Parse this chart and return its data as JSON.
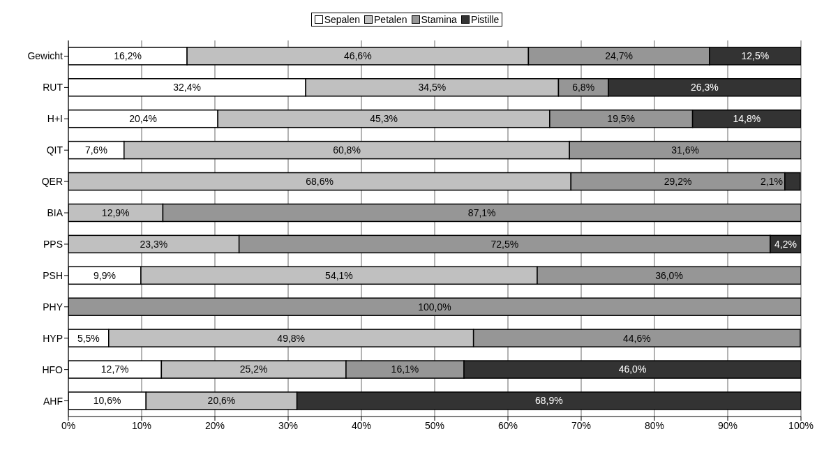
{
  "chart_data": {
    "type": "bar",
    "orientation": "horizontal",
    "stacked": true,
    "legend": "top",
    "grid": "x",
    "categories": [
      "Gewicht",
      "RUT",
      "H+I",
      "QIT",
      "QER",
      "BIA",
      "PPS",
      "PSH",
      "PHY",
      "HYP",
      "HFO",
      "AHF"
    ],
    "xlim": [
      0,
      100
    ],
    "xticks": [
      {
        "value": 0,
        "label": "0%"
      },
      {
        "value": 10,
        "label": "10%"
      },
      {
        "value": 20,
        "label": "20%"
      },
      {
        "value": 30,
        "label": "30%"
      },
      {
        "value": 40,
        "label": "40%"
      },
      {
        "value": 50,
        "label": "50%"
      },
      {
        "value": 60,
        "label": "60%"
      },
      {
        "value": 70,
        "label": "70%"
      },
      {
        "value": 80,
        "label": "80%"
      },
      {
        "value": 90,
        "label": "90%"
      },
      {
        "value": 100,
        "label": "100%"
      }
    ],
    "series": [
      {
        "name": "Sepalen",
        "color": "#ffffff",
        "values": [
          16.2,
          32.4,
          20.4,
          7.6,
          null,
          null,
          null,
          9.9,
          null,
          5.5,
          12.7,
          10.6
        ],
        "value_labels": [
          "16,2%",
          "32,4%",
          "20,4%",
          "7,6%",
          null,
          null,
          null,
          "9,9%",
          null,
          "5,5%",
          "12,7%",
          "10,6%"
        ]
      },
      {
        "name": "Petalen",
        "color": "#c0c0c0",
        "values": [
          46.6,
          34.5,
          45.3,
          60.8,
          68.6,
          12.9,
          23.3,
          54.1,
          null,
          49.8,
          25.2,
          20.6
        ],
        "value_labels": [
          "46,6%",
          "34,5%",
          "45,3%",
          "60,8%",
          "68,6%",
          "12,9%",
          "23,3%",
          "54,1%",
          null,
          "49,8%",
          "25,2%",
          "20,6%"
        ]
      },
      {
        "name": "Stamina",
        "color": "#969696",
        "values": [
          24.7,
          6.8,
          19.5,
          31.6,
          29.2,
          87.1,
          72.5,
          36.0,
          100.0,
          44.6,
          16.1,
          null
        ],
        "value_labels": [
          "24,7%",
          "6,8%",
          "19,5%",
          "31,6%",
          "29,2%",
          "87,1%",
          "72,5%",
          "36,0%",
          "100,0%",
          "44,6%",
          "16,1%",
          null
        ]
      },
      {
        "name": "Pistille",
        "color": "#333333",
        "values": [
          12.5,
          26.3,
          14.8,
          null,
          2.1,
          null,
          4.2,
          null,
          null,
          null,
          46.0,
          68.9
        ],
        "value_labels": [
          "12,5%",
          "26,3%",
          "14,8%",
          null,
          "2,1%",
          null,
          "4,2%",
          null,
          null,
          null,
          "46,0%",
          "68,9%"
        ]
      }
    ]
  }
}
